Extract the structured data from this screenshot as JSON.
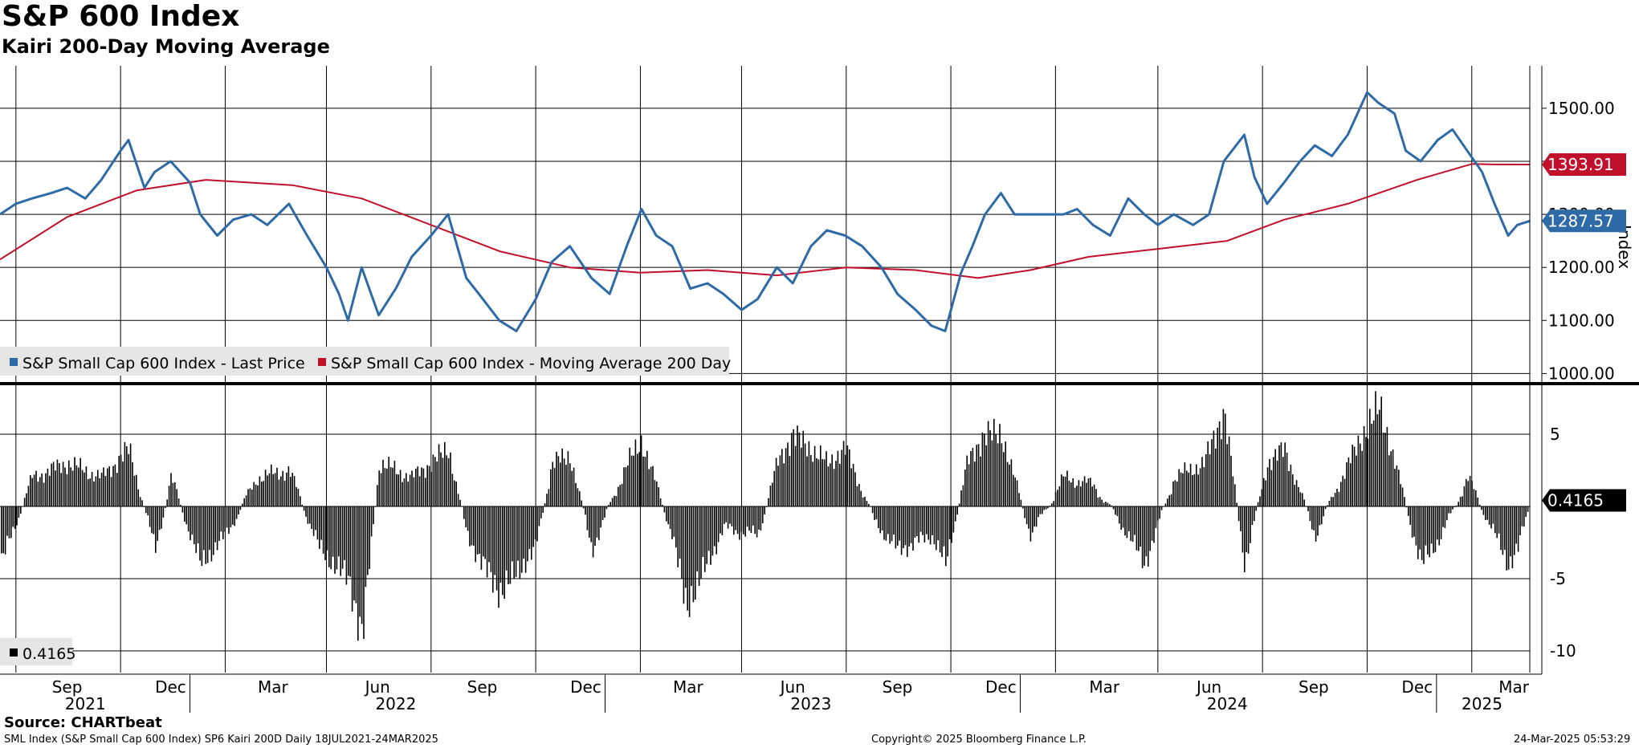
{
  "header": {
    "title": "S&P 600 Index",
    "subtitle": "Kairi 200-Day Moving Average"
  },
  "footer": {
    "source": "Source: CHARTbeat",
    "info": "SML Index (S&P Small Cap 600 Index) SP6 Kairi 200D  Daily 18JUL2021-24MAR2025",
    "copyright": "Copyright© 2025 Bloomberg Finance L.P.",
    "timestamp": "24-Mar-2025 05:53:29"
  },
  "colors": {
    "price": "#2e6aa6",
    "ma": "#c0102c",
    "kairi": "#000000",
    "grid": "#000000"
  },
  "chart_data": [
    {
      "type": "line",
      "ylabel": "Index",
      "ylim": [
        990,
        1580
      ],
      "yticks": [
        "1000.00",
        "1100.00",
        "1200.00",
        "1300.00",
        "1400.00",
        "1500.00"
      ],
      "x_month_labels": [
        "Sep",
        "Dec",
        "Mar",
        "Jun",
        "Sep",
        "Dec",
        "Mar",
        "Jun",
        "Sep",
        "Dec",
        "Mar",
        "Jun",
        "Sep",
        "Dec",
        "Mar"
      ],
      "x_year_labels": [
        "2021",
        "2022",
        "2023",
        "2024",
        "2025"
      ],
      "x_range": [
        "2021-07-18",
        "2025-03-24"
      ],
      "last_value_tags": [
        {
          "label": "1393.91",
          "series": "ma"
        },
        {
          "label": "1287.57",
          "series": "price"
        }
      ],
      "legend": [
        "S&P Small Cap 600 Index - Last Price",
        "S&P Small Cap 600 Index - Moving Average 200 Day"
      ],
      "series": [
        {
          "name": "S&P Small Cap 600 Index - Last Price",
          "x": [
            "2021-07-18",
            "2021-08-01",
            "2021-08-15",
            "2021-09-01",
            "2021-09-15",
            "2021-10-01",
            "2021-10-15",
            "2021-11-01",
            "2021-11-08",
            "2021-11-22",
            "2021-12-01",
            "2021-12-15",
            "2022-01-01",
            "2022-01-10",
            "2022-01-25",
            "2022-02-08",
            "2022-02-24",
            "2022-03-10",
            "2022-03-29",
            "2022-04-14",
            "2022-05-01",
            "2022-05-12",
            "2022-05-20",
            "2022-06-01",
            "2022-06-16",
            "2022-07-01",
            "2022-07-15",
            "2022-08-01",
            "2022-08-16",
            "2022-09-01",
            "2022-09-12",
            "2022-09-30",
            "2022-10-15",
            "2022-11-01",
            "2022-11-15",
            "2022-12-01",
            "2022-12-20",
            "2023-01-05",
            "2023-01-20",
            "2023-02-02",
            "2023-02-15",
            "2023-03-01",
            "2023-03-17",
            "2023-04-01",
            "2023-04-15",
            "2023-05-01",
            "2023-05-15",
            "2023-06-01",
            "2023-06-15",
            "2023-07-01",
            "2023-07-15",
            "2023-07-31",
            "2023-08-15",
            "2023-09-01",
            "2023-09-15",
            "2023-10-01",
            "2023-10-15",
            "2023-10-27",
            "2023-11-10",
            "2023-11-20",
            "2023-12-01",
            "2023-12-15",
            "2023-12-27",
            "2024-01-10",
            "2024-01-25",
            "2024-02-08",
            "2024-02-20",
            "2024-03-05",
            "2024-03-20",
            "2024-04-05",
            "2024-04-19",
            "2024-05-01",
            "2024-05-15",
            "2024-06-01",
            "2024-06-15",
            "2024-06-28",
            "2024-07-16",
            "2024-07-25",
            "2024-08-05",
            "2024-08-20",
            "2024-09-03",
            "2024-09-16",
            "2024-10-01",
            "2024-10-15",
            "2024-11-01",
            "2024-11-11",
            "2024-11-25",
            "2024-12-05",
            "2024-12-18",
            "2025-01-02",
            "2025-01-15",
            "2025-01-28",
            "2025-02-10",
            "2025-02-21",
            "2025-03-05",
            "2025-03-13",
            "2025-03-24"
          ],
          "y": [
            1300,
            1320,
            1330,
            1340,
            1350,
            1330,
            1365,
            1420,
            1440,
            1350,
            1380,
            1400,
            1360,
            1300,
            1260,
            1290,
            1300,
            1280,
            1320,
            1260,
            1200,
            1150,
            1100,
            1200,
            1110,
            1160,
            1220,
            1260,
            1300,
            1180,
            1150,
            1100,
            1080,
            1140,
            1210,
            1240,
            1180,
            1150,
            1240,
            1310,
            1260,
            1240,
            1160,
            1170,
            1150,
            1120,
            1140,
            1200,
            1170,
            1240,
            1270,
            1260,
            1240,
            1200,
            1150,
            1120,
            1090,
            1080,
            1190,
            1240,
            1300,
            1340,
            1300,
            1300,
            1300,
            1300,
            1310,
            1280,
            1260,
            1330,
            1300,
            1280,
            1300,
            1280,
            1300,
            1400,
            1450,
            1370,
            1320,
            1360,
            1400,
            1430,
            1410,
            1450,
            1530,
            1510,
            1490,
            1420,
            1400,
            1440,
            1460,
            1420,
            1380,
            1320,
            1260,
            1280,
            1287.57
          ]
        },
        {
          "name": "S&P Small Cap 600 Index - Moving Average 200 Day",
          "x": [
            "2021-07-18",
            "2021-09-15",
            "2021-11-15",
            "2022-01-15",
            "2022-04-01",
            "2022-06-01",
            "2022-08-01",
            "2022-10-01",
            "2022-12-01",
            "2023-02-01",
            "2023-04-01",
            "2023-06-01",
            "2023-08-01",
            "2023-10-01",
            "2023-11-25",
            "2024-01-10",
            "2024-03-01",
            "2024-05-01",
            "2024-07-01",
            "2024-08-20",
            "2024-10-15",
            "2024-12-15",
            "2025-02-01",
            "2025-02-20",
            "2025-03-24"
          ],
          "y": [
            1215,
            1295,
            1345,
            1365,
            1355,
            1330,
            1280,
            1230,
            1200,
            1190,
            1195,
            1185,
            1200,
            1195,
            1180,
            1195,
            1220,
            1235,
            1250,
            1290,
            1320,
            1365,
            1395,
            1394,
            1393.91
          ]
        }
      ]
    },
    {
      "type": "bar",
      "legend": [
        "0.4165"
      ],
      "last_value_tags": [
        {
          "label": "0.4165",
          "series": "kairi"
        }
      ],
      "yticks": [
        "5",
        "-5",
        "-10"
      ],
      "ylim": [
        -11.5,
        8.5
      ],
      "x_range": [
        "2021-07-18",
        "2025-03-24"
      ],
      "series": [
        {
          "name": "0.4165",
          "x": [
            "2021-07-18",
            "2021-08-15",
            "2021-09-15",
            "2021-10-15",
            "2021-11-08",
            "2021-12-01",
            "2021-12-15",
            "2022-01-10",
            "2022-02-01",
            "2022-03-01",
            "2022-03-29",
            "2022-04-25",
            "2022-05-20",
            "2022-06-01",
            "2022-06-16",
            "2022-07-15",
            "2022-08-16",
            "2022-09-01",
            "2022-09-30",
            "2022-10-31",
            "2022-11-15",
            "2022-12-01",
            "2022-12-20",
            "2023-01-20",
            "2023-02-02",
            "2023-03-01",
            "2023-03-13",
            "2023-04-15",
            "2023-05-15",
            "2023-06-01",
            "2023-06-15",
            "2023-07-15",
            "2023-07-31",
            "2023-08-25",
            "2023-09-15",
            "2023-10-15",
            "2023-10-27",
            "2023-11-15",
            "2023-11-30",
            "2023-12-15",
            "2024-01-10",
            "2024-02-08",
            "2024-03-05",
            "2024-04-05",
            "2024-04-19",
            "2024-05-15",
            "2024-06-10",
            "2024-06-28",
            "2024-07-16",
            "2024-08-05",
            "2024-08-20",
            "2024-09-16",
            "2024-10-15",
            "2024-11-11",
            "2024-11-25",
            "2024-12-18",
            "2025-01-05",
            "2025-01-28",
            "2025-02-21",
            "2025-03-05",
            "2025-03-13",
            "2025-03-24"
          ],
          "y": [
            -4,
            2,
            3,
            2,
            4,
            -3,
            2,
            -4,
            -2,
            2,
            2.5,
            -3,
            -5,
            -9,
            3,
            2,
            4,
            -2,
            -6,
            -3,
            3,
            3.5,
            -3,
            3,
            4.5,
            -2,
            -7,
            -1.5,
            -2,
            3,
            5,
            3,
            4,
            -1,
            -3,
            -2,
            -4,
            3,
            5,
            5,
            -2,
            2,
            1.5,
            -2,
            -4,
            2,
            3,
            6.5,
            -4,
            3,
            4,
            -2,
            3,
            7,
            3,
            -4,
            -2,
            2,
            -2,
            -4,
            -3,
            0.4165
          ]
        }
      ]
    }
  ]
}
